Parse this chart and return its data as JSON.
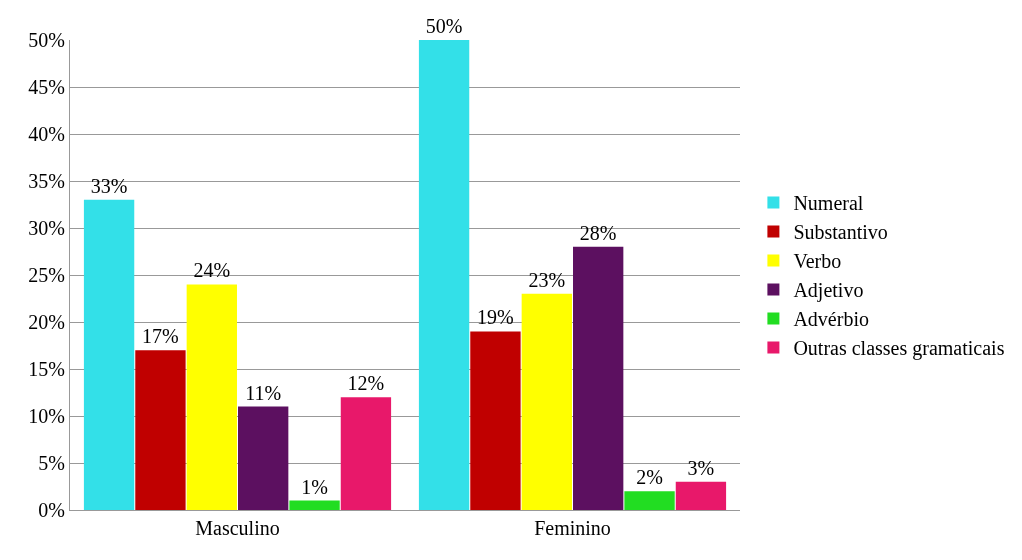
{
  "chart_data": {
    "type": "bar",
    "categories": [
      "Masculino",
      "Feminino"
    ],
    "series": [
      {
        "name": "Numeral",
        "color": "#33e0e8",
        "values": [
          33,
          50
        ],
        "value_labels": [
          "33%",
          "50%"
        ]
      },
      {
        "name": "Substantivo",
        "color": "#c00000",
        "values": [
          17,
          19
        ],
        "value_labels": [
          "17%",
          "19%"
        ]
      },
      {
        "name": "Verbo",
        "color": "#ffff00",
        "values": [
          24,
          23
        ],
        "value_labels": [
          "24%",
          "23%"
        ]
      },
      {
        "name": "Adjetivo",
        "color": "#5c1060",
        "values": [
          11,
          28
        ],
        "value_labels": [
          "11%",
          "28%"
        ]
      },
      {
        "name": "Advérbio",
        "color": "#22dd22",
        "values": [
          1,
          2
        ],
        "value_labels": [
          "1%",
          "2%"
        ]
      },
      {
        "name": "Outras classes gramaticais",
        "color": "#e8186a",
        "values": [
          12,
          3
        ],
        "value_labels": [
          "12%",
          "3%"
        ]
      }
    ],
    "ylim": [
      0,
      50
    ],
    "yticks": [
      {
        "value": 0,
        "label": "0%"
      },
      {
        "value": 5,
        "label": "5%"
      },
      {
        "value": 10,
        "label": "10%"
      },
      {
        "value": 15,
        "label": "15%"
      },
      {
        "value": 20,
        "label": "20%"
      },
      {
        "value": 25,
        "label": "25%"
      },
      {
        "value": 30,
        "label": "30%"
      },
      {
        "value": 35,
        "label": "35%"
      },
      {
        "value": 40,
        "label": "40%"
      },
      {
        "value": 45,
        "label": "45%"
      },
      {
        "value": 50,
        "label": "50%"
      }
    ],
    "grid": "y",
    "legend": "right"
  }
}
